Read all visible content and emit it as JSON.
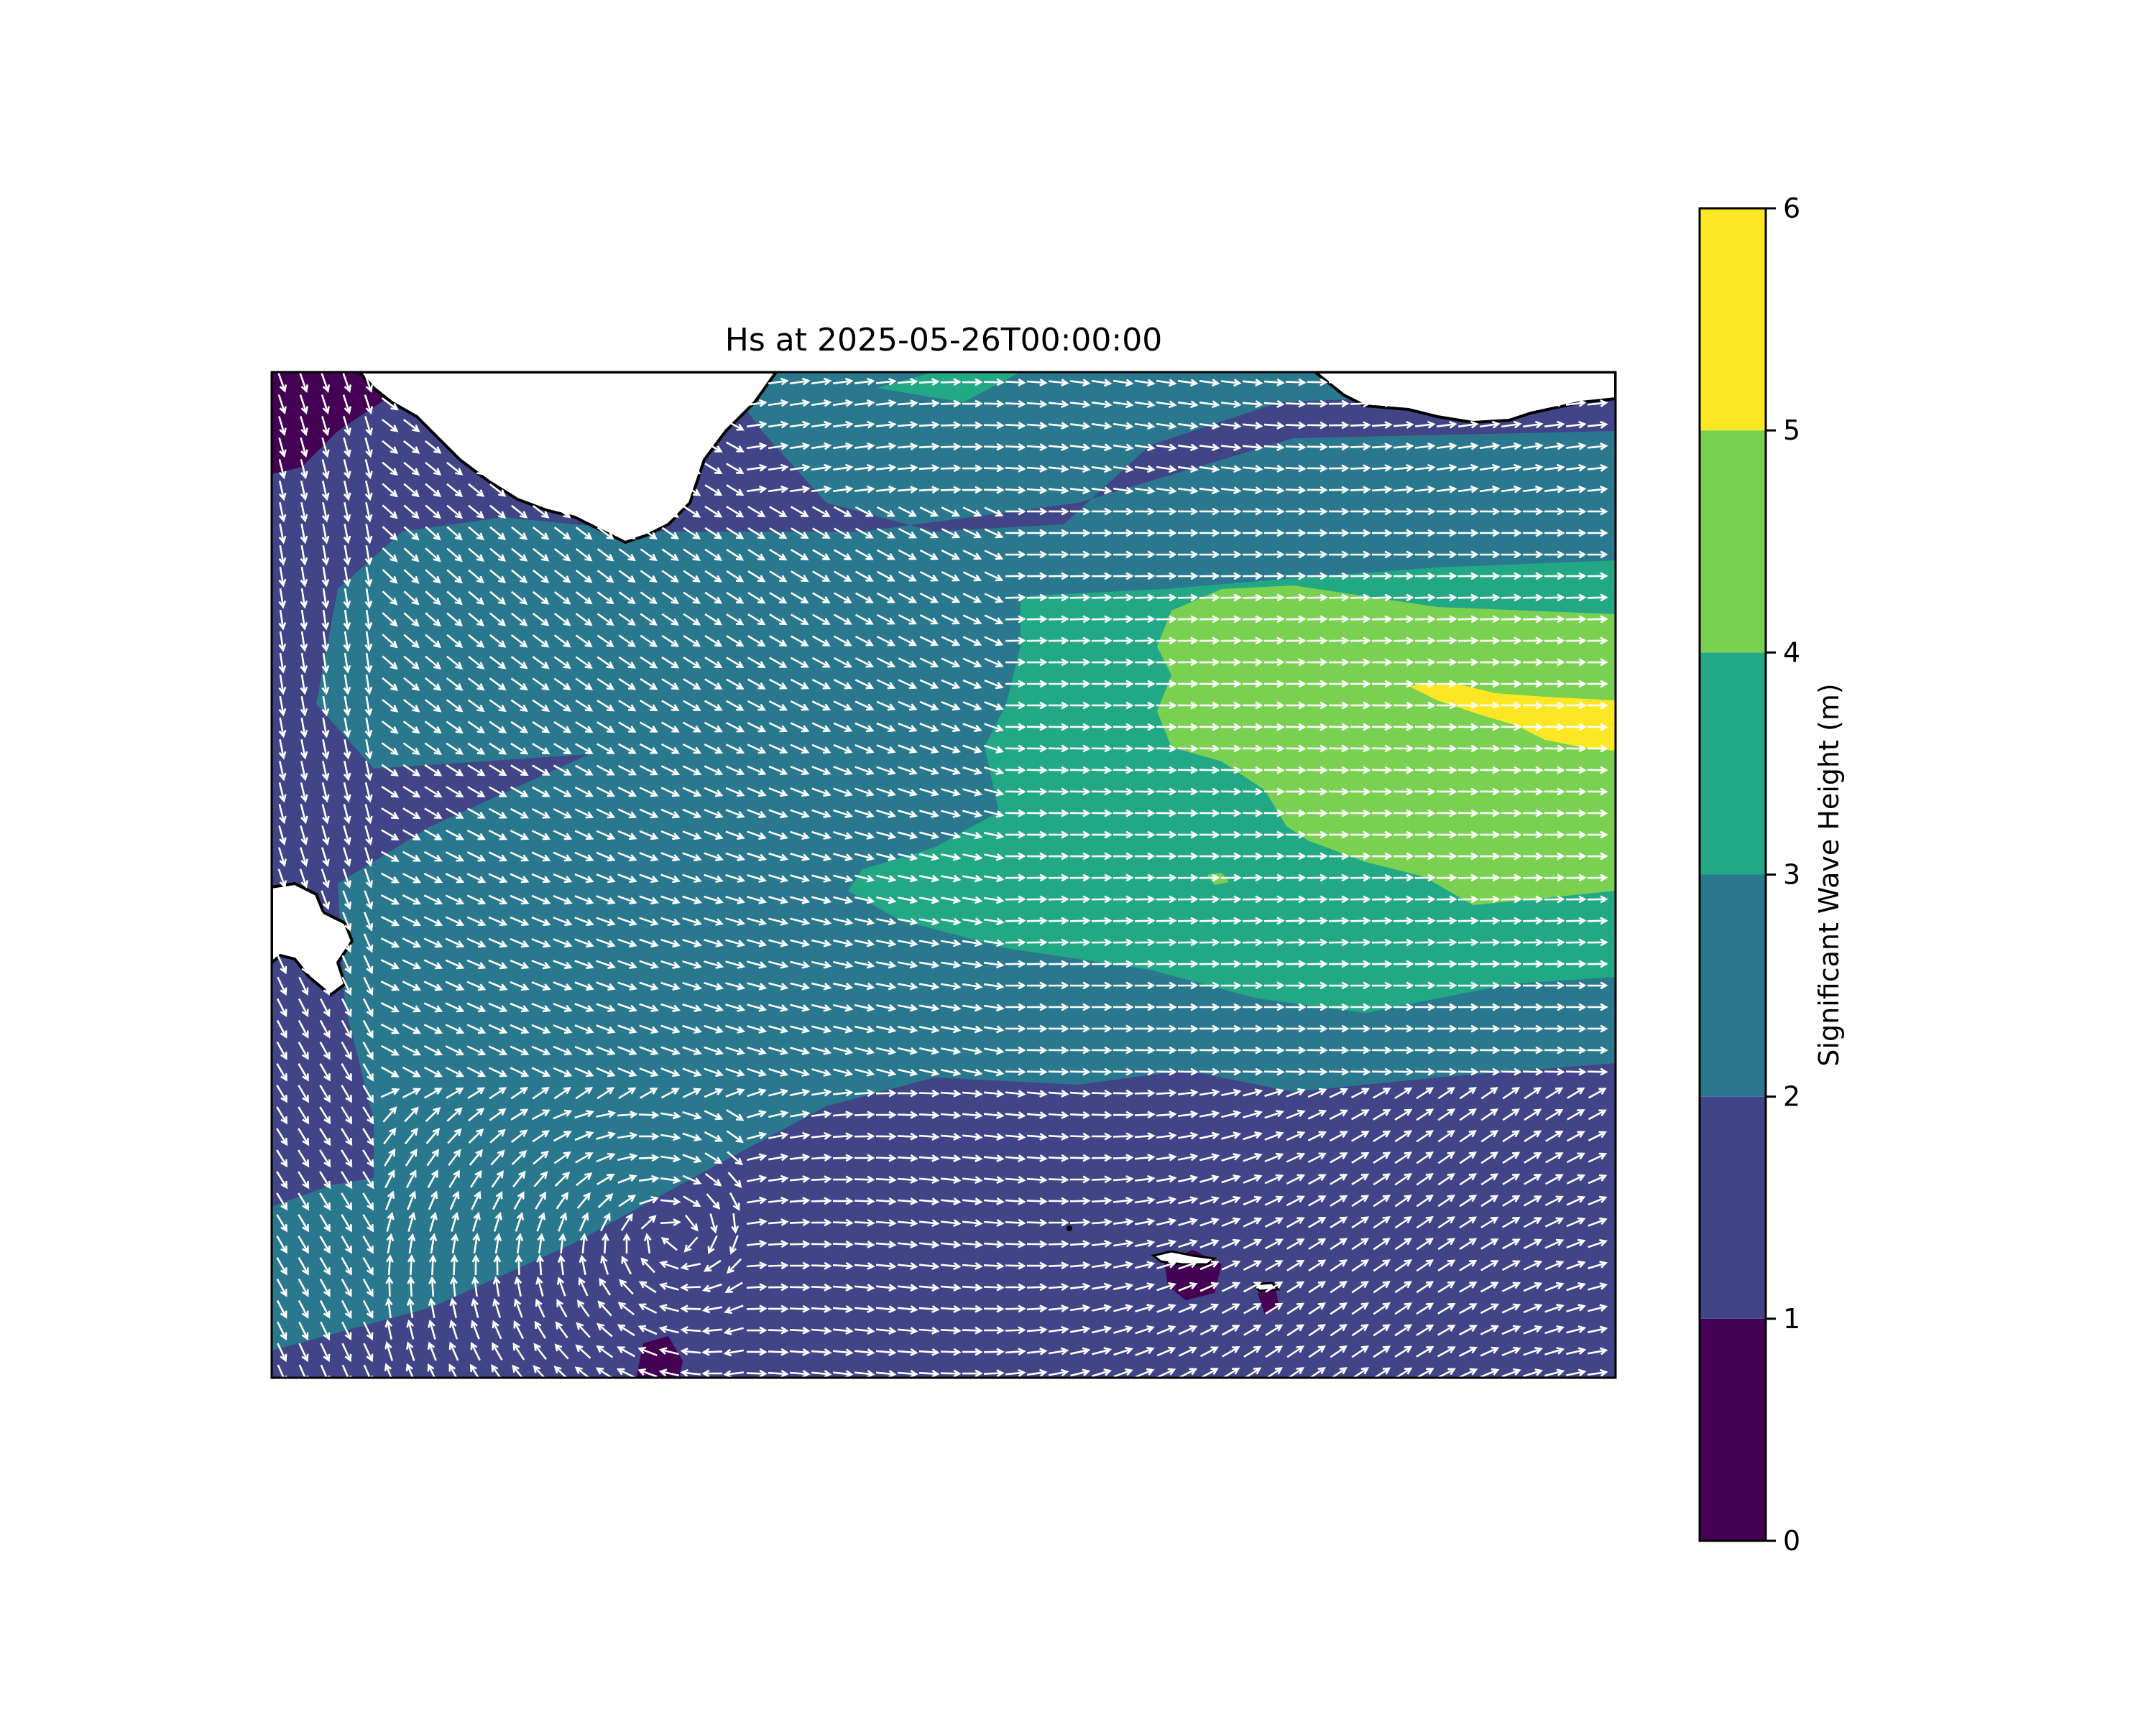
{
  "title": "Hs at 2025-05-26T00:00:00",
  "map": {
    "field": "Significant Wave Height",
    "vector_overlay": "wave direction arrows",
    "colors": {
      "land": "#ffffff",
      "coastline": "#000000",
      "arrows": "#ffffff",
      "frame": "#000000"
    }
  },
  "colorbar": {
    "label": "Significant Wave Height (m)",
    "ticks": [
      "0",
      "1",
      "2",
      "3",
      "4",
      "5",
      "6"
    ],
    "range": [
      0,
      6
    ],
    "levels": [
      {
        "min": 0,
        "max": 1,
        "color": "#440154"
      },
      {
        "min": 1,
        "max": 2,
        "color": "#414487"
      },
      {
        "min": 2,
        "max": 3,
        "color": "#2a788e"
      },
      {
        "min": 3,
        "max": 4,
        "color": "#22a884"
      },
      {
        "min": 4,
        "max": 5,
        "color": "#7ad151"
      },
      {
        "min": 5,
        "max": 6,
        "color": "#fde725"
      }
    ]
  }
}
